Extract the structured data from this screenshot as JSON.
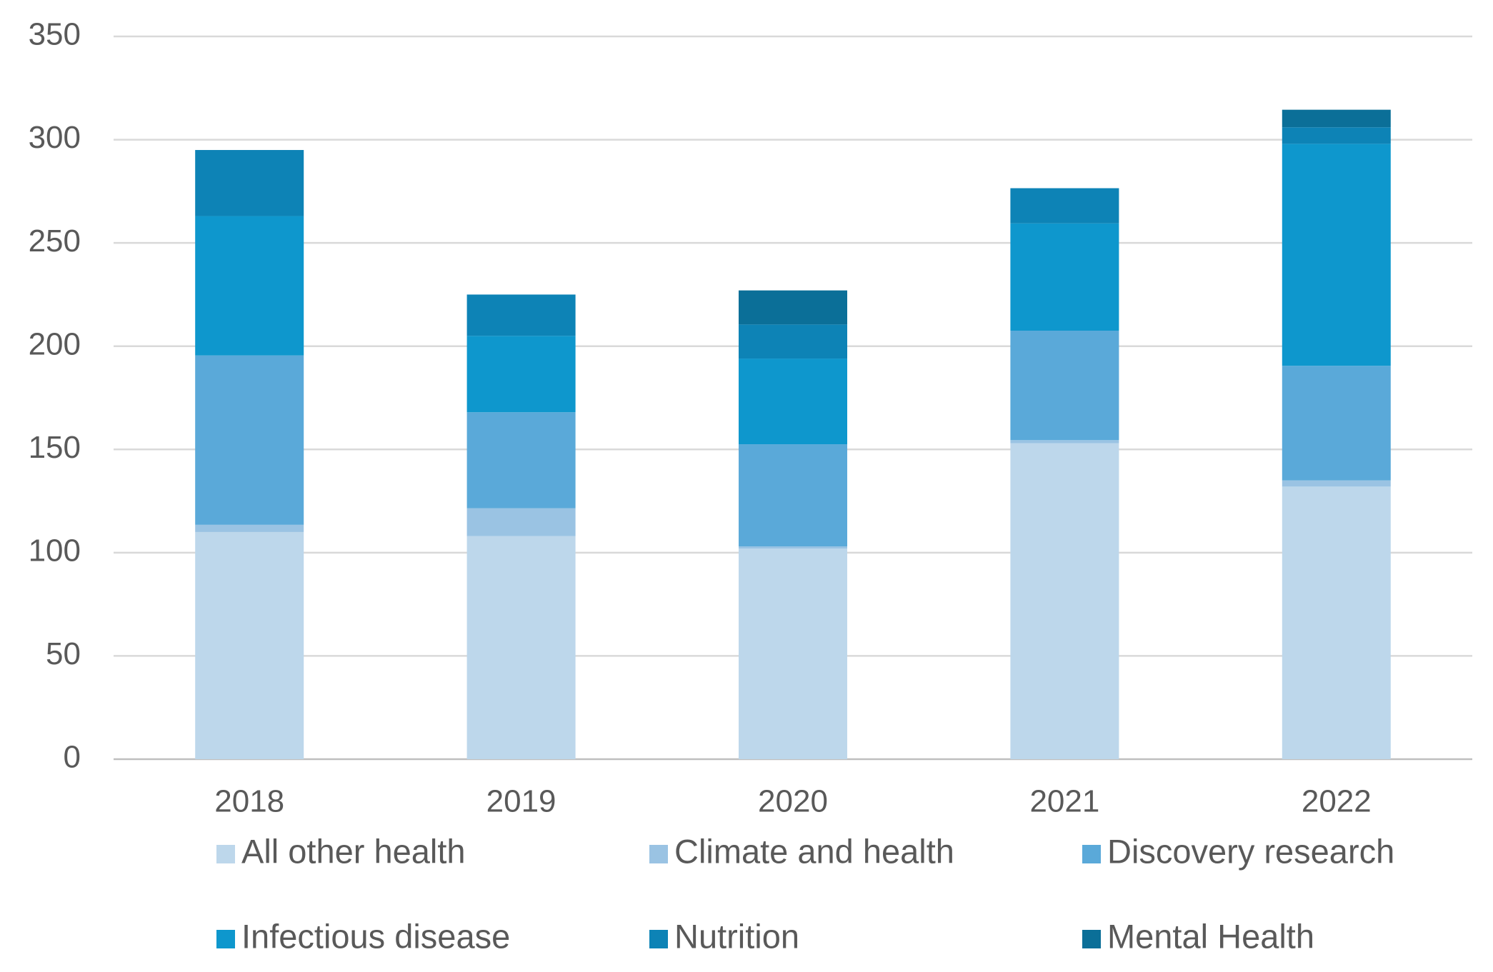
{
  "chart_data": {
    "type": "stacked-bar",
    "categories": [
      "2018",
      "2019",
      "2020",
      "2021",
      "2022"
    ],
    "series": [
      {
        "name": "All other health",
        "color": "#bdd7eb",
        "values": [
          110,
          108,
          102,
          153,
          132
        ]
      },
      {
        "name": "Climate and health",
        "color": "#9ac3e3",
        "values": [
          3.5,
          13.5,
          1,
          1.5,
          3
        ]
      },
      {
        "name": "Discovery research",
        "color": "#5aa9d9",
        "values": [
          82,
          46.5,
          49.5,
          53,
          55.5
        ]
      },
      {
        "name": "Infectious disease",
        "color": "#0e97cd",
        "values": [
          67.5,
          37,
          41.5,
          52,
          107.5
        ]
      },
      {
        "name": "Nutrition",
        "color": "#0d83b6",
        "values": [
          32,
          20,
          16.5,
          17,
          8
        ]
      },
      {
        "name": "Mental Health",
        "color": "#0b6f98",
        "values": [
          0,
          0,
          16.5,
          0,
          8.5
        ]
      }
    ],
    "ylim": [
      0,
      350
    ],
    "yticks": [
      0,
      50,
      100,
      150,
      200,
      250,
      300,
      350
    ],
    "grid": true
  }
}
